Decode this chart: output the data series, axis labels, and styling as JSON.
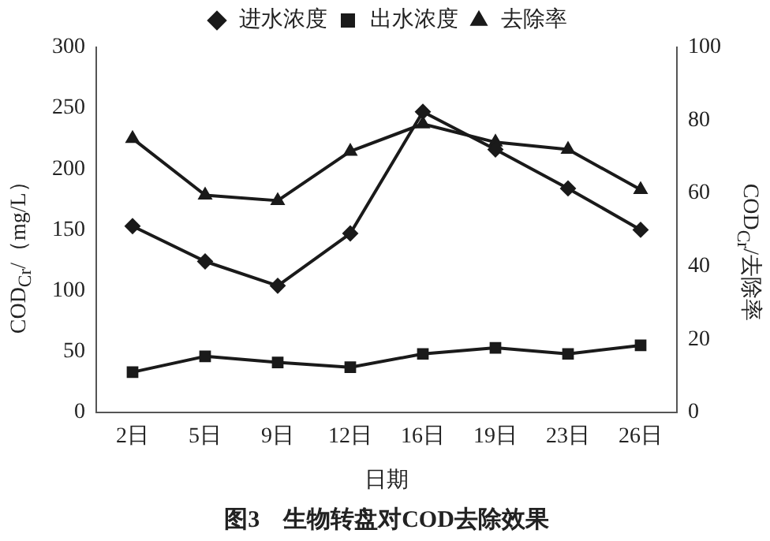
{
  "chart_data": {
    "type": "line",
    "title": "图3　生物转盘对COD去除效果",
    "xlabel": "日期",
    "ylabel": "COD$_{Cr}$/（mg/L）",
    "y2label": "COD$_{Cr}$/去除率",
    "categories": [
      "2日",
      "5日",
      "9日",
      "12日",
      "16日",
      "19日",
      "23日",
      "26日"
    ],
    "series": [
      {
        "name": "进水浓度",
        "color": "#1a1a1a",
        "marker": "diamond",
        "values": [
          153,
          124,
          104,
          147,
          247,
          216,
          184,
          150
        ]
      },
      {
        "name": "出水浓度",
        "color": "#1a1a1a",
        "marker": "square",
        "values": [
          33,
          46,
          41,
          37,
          48,
          53,
          48,
          55
        ]
      },
      {
        "name": "去除率",
        "color": "#1a1a1a",
        "marker": "triangle",
        "axis": "y2",
        "values": [
          75,
          59.5,
          58,
          71.5,
          79,
          74,
          72,
          61
        ]
      }
    ],
    "ylim": [
      0,
      300
    ],
    "yticks": [
      0,
      50,
      100,
      150,
      200,
      250,
      300
    ],
    "y2lim": [
      0,
      100
    ],
    "y2ticks": [
      0,
      20,
      40,
      60,
      80,
      100
    ],
    "legend": "top",
    "grid": false,
    "line_style": "solid"
  }
}
